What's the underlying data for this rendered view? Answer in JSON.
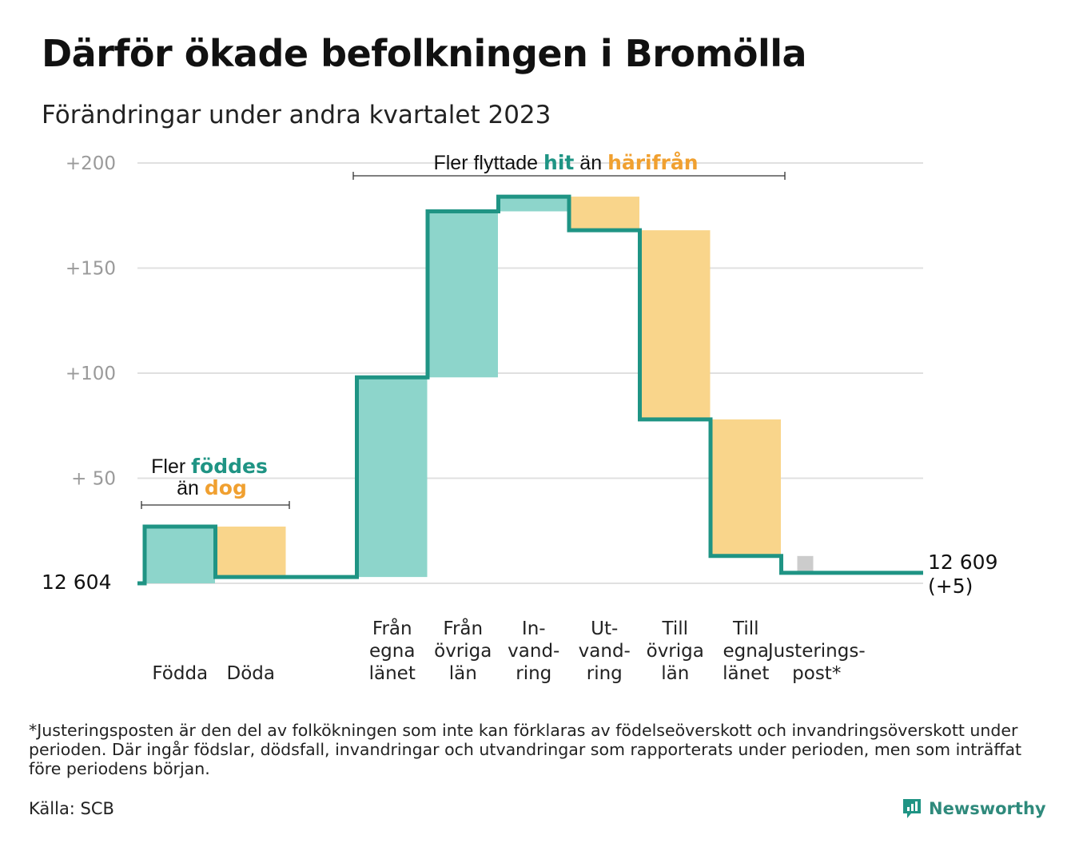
{
  "title": "Därför ökade befolkningen i Bromölla",
  "subtitle": "Förändringar under andra kvartalet 2023",
  "footnote": "*Justeringsposten är den del av folkökningen som inte kan förklaras av födelseöverskott och invandringsöverskott under perioden. Där ingår födslar, dödsfall, invandringar och utvandringar som rapporterats under perioden, men som inträffat före periodens början.",
  "source": "Källa: SCB",
  "brand": "Newsworthy",
  "colors": {
    "increase": "#8dd5cb",
    "decrease": "#f9d58b",
    "adjustment": "#cccccc",
    "line": "#1f9484",
    "teal_text": "#1f9484",
    "orange_text": "#f0a030",
    "grid": "#e0e0e0"
  },
  "chart_data": {
    "type": "waterfall",
    "ylim": [
      0,
      200
    ],
    "y_ticks": [
      {
        "value": 50,
        "label": "+  50"
      },
      {
        "value": 100,
        "label": "+100"
      },
      {
        "value": 150,
        "label": "+150"
      },
      {
        "value": 200,
        "label": "+200"
      }
    ],
    "start_label": "12  604",
    "end_label_line1": "12 609",
    "end_label_line2": "(+5)",
    "steps": [
      {
        "label": [
          "Födda"
        ],
        "change": 27,
        "kind": "increase"
      },
      {
        "label": [
          "Döda"
        ],
        "change": -24,
        "kind": "decrease"
      },
      {
        "label": [],
        "change": 0,
        "kind": "gap"
      },
      {
        "label": [
          "Från",
          "egna",
          "länet"
        ],
        "change": 95,
        "kind": "increase"
      },
      {
        "label": [
          "Från",
          "övriga",
          "län"
        ],
        "change": 79,
        "kind": "increase"
      },
      {
        "label": [
          "In-",
          "vand-",
          "ring"
        ],
        "change": 7,
        "kind": "increase"
      },
      {
        "label": [
          "Ut-",
          "vand-",
          "ring"
        ],
        "change": -16,
        "kind": "decrease"
      },
      {
        "label": [
          "Till",
          "övriga",
          "län"
        ],
        "change": -90,
        "kind": "decrease"
      },
      {
        "label": [
          "Till",
          "egna",
          "länet"
        ],
        "change": -65,
        "kind": "decrease"
      },
      {
        "label": [
          "Justerings-",
          "post*"
        ],
        "change": -8,
        "kind": "adjustment"
      }
    ],
    "annotations": [
      {
        "segments": [
          {
            "text": "Fler ",
            "style": "plain"
          },
          {
            "text": "föddes",
            "style": "teal"
          },
          {
            "text": "",
            "style": "break"
          },
          {
            "text": "än ",
            "style": "plain"
          },
          {
            "text": "dog",
            "style": "orange"
          }
        ]
      },
      {
        "segments": [
          {
            "text": "Fler flyttade ",
            "style": "plain"
          },
          {
            "text": "hit",
            "style": "teal"
          },
          {
            "text": " än ",
            "style": "plain"
          },
          {
            "text": "härifrån",
            "style": "orange"
          }
        ]
      }
    ]
  }
}
